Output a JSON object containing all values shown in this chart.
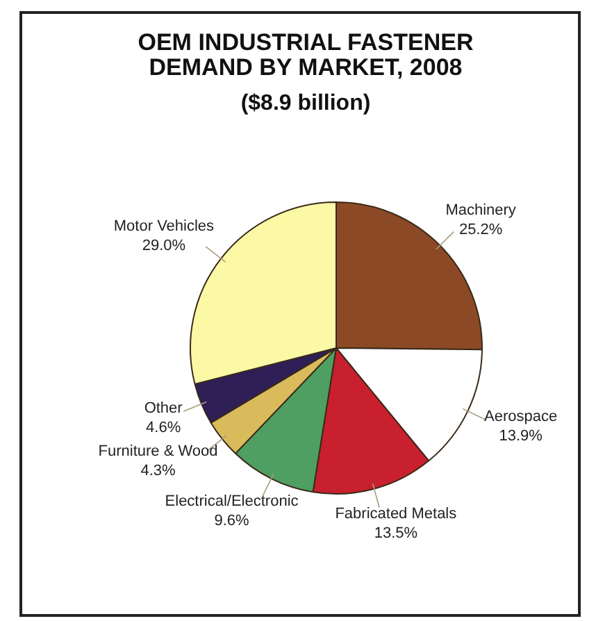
{
  "chart_data": {
    "type": "pie",
    "title": "OEM INDUSTRIAL FASTENER DEMAND BY MARKET, 2008",
    "subtitle": "($8.9 billion)",
    "categories": [
      "Machinery",
      "Aerospace",
      "Fabricated Metals",
      "Electrical/Electronic",
      "Furniture & Wood",
      "Other",
      "Motor Vehicles"
    ],
    "values": [
      25.2,
      13.9,
      13.5,
      9.6,
      4.3,
      4.6,
      29.0
    ],
    "value_labels": [
      "25.2%",
      "13.9%",
      "13.5%",
      "9.6%",
      "4.3%",
      "4.6%",
      "29.0%"
    ],
    "colors": [
      "#8b4a25",
      "#ffffff",
      "#c8202e",
      "#4f9e62",
      "#d9bb5c",
      "#2e1f57",
      "#fbf8a6"
    ],
    "legend": false
  }
}
